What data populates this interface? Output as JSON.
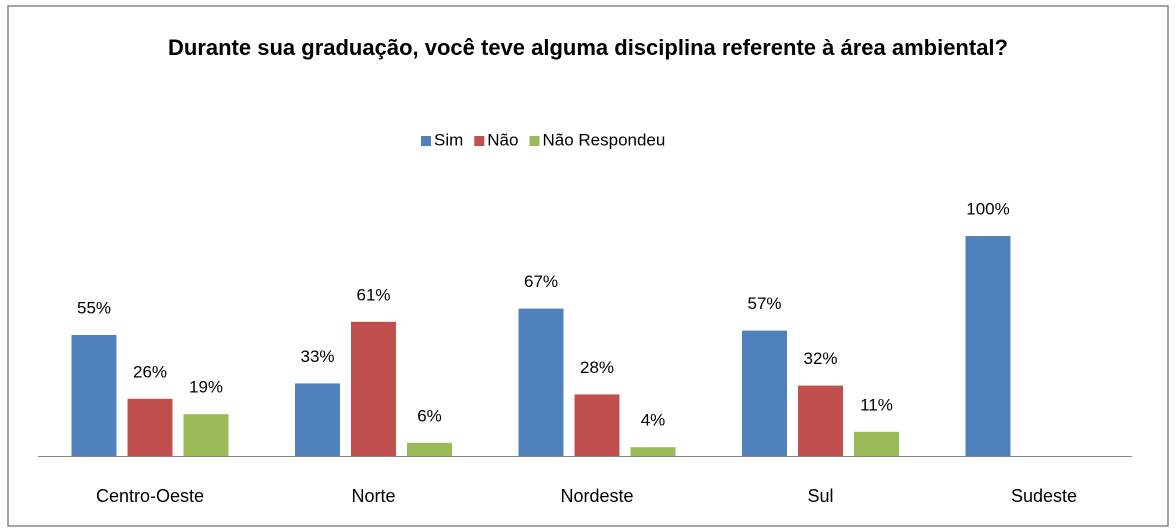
{
  "chart_data": {
    "type": "bar",
    "title": "Durante sua graduação, você teve alguma disciplina referente à área ambiental?",
    "categories": [
      "Centro-Oeste",
      "Norte",
      "Nordeste",
      "Sul",
      "Sudeste"
    ],
    "series": [
      {
        "name": "Sim",
        "color": "#4f81bd",
        "values": [
          55,
          33,
          67,
          57,
          100
        ],
        "value_labels": [
          "55%",
          "33%",
          "67%",
          "57%",
          "100%"
        ]
      },
      {
        "name": "Não",
        "color": "#c0504d",
        "values": [
          26,
          61,
          28,
          32,
          null
        ],
        "value_labels": [
          "26%",
          "61%",
          "28%",
          "32%",
          null
        ]
      },
      {
        "name": "Não Respondeu",
        "color": "#9bbb59",
        "values": [
          19,
          6,
          4,
          11,
          null
        ],
        "value_labels": [
          "19%",
          "6%",
          "4%",
          "11%",
          null
        ]
      }
    ],
    "legend": "top"
  }
}
